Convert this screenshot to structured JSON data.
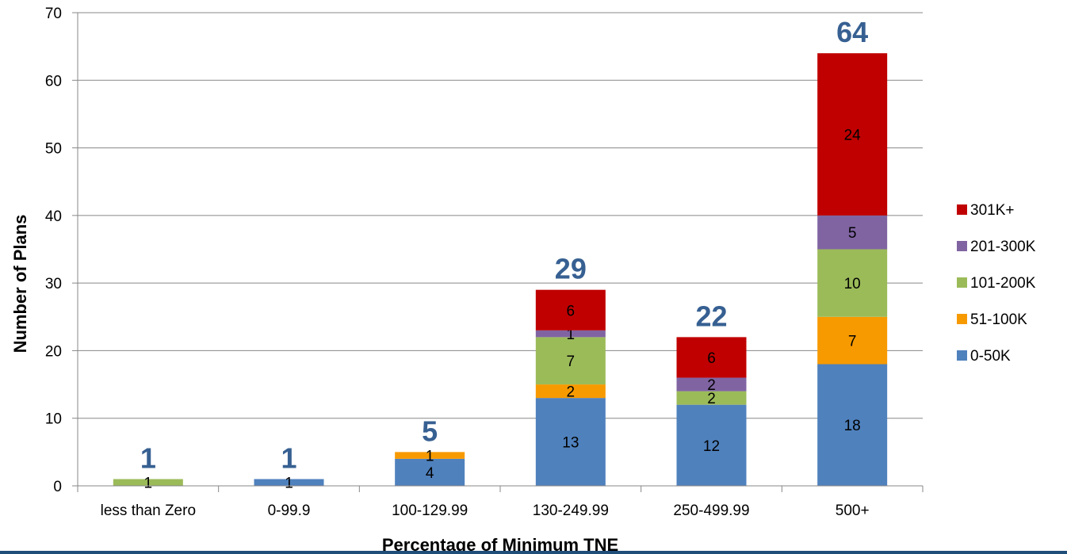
{
  "chart_data": {
    "type": "bar",
    "stacked": true,
    "title": "",
    "xlabel": "Percentage of Minimum TNE",
    "ylabel": "Number of Plans",
    "ylim": [
      0,
      70
    ],
    "yticks": [
      0,
      10,
      20,
      30,
      40,
      50,
      60,
      70
    ],
    "grid": true,
    "legend_position": "right",
    "categories": [
      "less than Zero",
      "0-99.9",
      "100-129.99",
      "130-249.99",
      "250-499.99",
      "500+"
    ],
    "series": [
      {
        "name": "0-50K",
        "color": "#4F81BD",
        "values": [
          0,
          1,
          4,
          13,
          12,
          18
        ]
      },
      {
        "name": "51-100K",
        "color": "#F79A00",
        "values": [
          0,
          0,
          1,
          2,
          0,
          7
        ]
      },
      {
        "name": "101-200K",
        "color": "#9BBB59",
        "values": [
          1,
          0,
          0,
          7,
          2,
          10
        ]
      },
      {
        "name": "201-300K",
        "color": "#8064A2",
        "values": [
          0,
          0,
          0,
          1,
          2,
          5
        ]
      },
      {
        "name": "301K+",
        "color": "#C00000",
        "values": [
          0,
          0,
          0,
          6,
          6,
          24
        ]
      }
    ],
    "totals": [
      "1",
      "1",
      "5",
      "29",
      "22",
      "64"
    ],
    "total_label_color": "#376092"
  },
  "theme": {
    "bottom_rule_color": "#1F4E79",
    "gridline_color": "#878787"
  }
}
